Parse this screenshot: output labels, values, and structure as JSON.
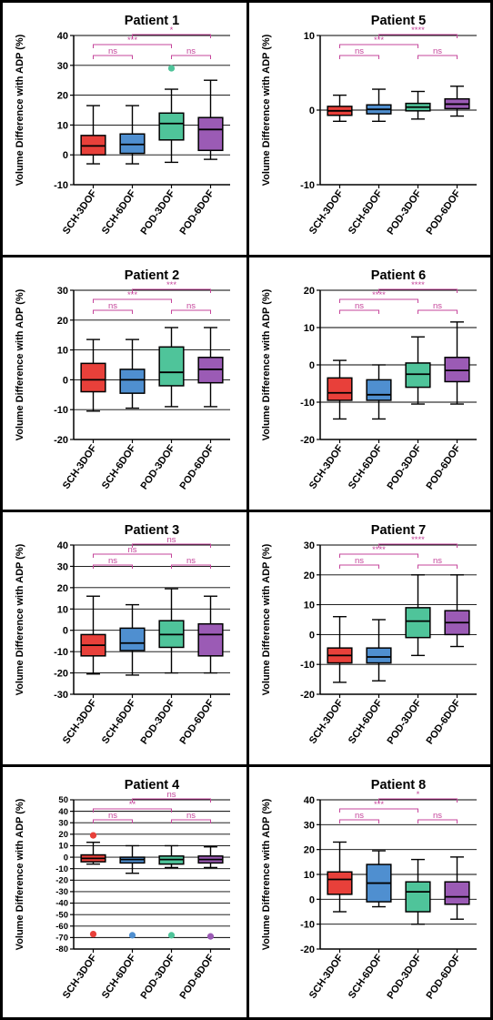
{
  "colors": {
    "SCH-3DOF": "#e8403a",
    "SCH-6DOF": "#4f8fd0",
    "POD-3DOF": "#4fc49a",
    "POD-6DOF": "#9b5bb5",
    "significance": "#c5459b"
  },
  "chart_data": [
    {
      "type": "box",
      "title": "Patient 1",
      "ylabel": "Volume Difference with ADP (%)",
      "ylim": [
        -10,
        40
      ],
      "yticks": [
        -10,
        0,
        10,
        20,
        30,
        40
      ],
      "categories": [
        "SCH-3DOF",
        "SCH-6DOF",
        "POD-3DOF",
        "POD-6DOF"
      ],
      "boxes": [
        {
          "min": -3,
          "q1": 0,
          "median": 3,
          "q3": 6.5,
          "max": 16.5
        },
        {
          "min": -3,
          "q1": 0.5,
          "median": 3.5,
          "q3": 7,
          "max": 16.5
        },
        {
          "min": -2.5,
          "q1": 5,
          "median": 10.5,
          "q3": 14,
          "max": 22
        },
        {
          "min": -1.5,
          "q1": 1.5,
          "median": 8.5,
          "q3": 12.5,
          "max": 25
        }
      ],
      "outliers": [
        {
          "category": "POD-3DOF",
          "value": 29
        }
      ],
      "comparisons": [
        {
          "from": "SCH-3DOF",
          "to": "SCH-6DOF",
          "label": "ns",
          "level": 0
        },
        {
          "from": "POD-3DOF",
          "to": "POD-6DOF",
          "label": "ns",
          "level": 1
        },
        {
          "from": "SCH-3DOF",
          "to": "POD-3DOF",
          "label": "***",
          "level": 2
        },
        {
          "from": "SCH-6DOF",
          "to": "POD-6DOF",
          "label": "*",
          "level": 3
        }
      ]
    },
    {
      "type": "box",
      "title": "Patient 5",
      "ylabel": "Volume Difference with ADP (%)",
      "ylim": [
        -10,
        10
      ],
      "yticks": [
        -10,
        0,
        10
      ],
      "categories": [
        "SCH-3DOF",
        "SCH-6DOF",
        "POD-3DOF",
        "POD-6DOF"
      ],
      "boxes": [
        {
          "min": -1.5,
          "q1": -0.7,
          "median": -0.1,
          "q3": 0.5,
          "max": 2
        },
        {
          "min": -1.5,
          "q1": -0.5,
          "median": 0.1,
          "q3": 0.7,
          "max": 2.8
        },
        {
          "min": -1.2,
          "q1": -0.1,
          "median": 0.4,
          "q3": 0.9,
          "max": 2.5
        },
        {
          "min": -0.8,
          "q1": 0.2,
          "median": 0.8,
          "q3": 1.5,
          "max": 3.2
        }
      ],
      "outliers": [],
      "comparisons": [
        {
          "from": "SCH-3DOF",
          "to": "SCH-6DOF",
          "label": "ns",
          "level": 0
        },
        {
          "from": "POD-3DOF",
          "to": "POD-6DOF",
          "label": "ns",
          "level": 1
        },
        {
          "from": "SCH-3DOF",
          "to": "POD-3DOF",
          "label": "***",
          "level": 2
        },
        {
          "from": "SCH-6DOF",
          "to": "POD-6DOF",
          "label": "****",
          "level": 3
        }
      ]
    },
    {
      "type": "box",
      "title": "Patient 2",
      "ylabel": "Volume Difference with ADP (%)",
      "ylim": [
        -20,
        30
      ],
      "yticks": [
        -20,
        -10,
        0,
        10,
        20,
        30
      ],
      "categories": [
        "SCH-3DOF",
        "SCH-6DOF",
        "POD-3DOF",
        "POD-6DOF"
      ],
      "boxes": [
        {
          "min": -10.5,
          "q1": -4,
          "median": 0,
          "q3": 5.5,
          "max": 13.5
        },
        {
          "min": -9.5,
          "q1": -4.5,
          "median": 0,
          "q3": 3.5,
          "max": 13.5
        },
        {
          "min": -9,
          "q1": -2,
          "median": 2.5,
          "q3": 11,
          "max": 17.5
        },
        {
          "min": -9,
          "q1": -1,
          "median": 3.5,
          "q3": 7.5,
          "max": 17.5
        }
      ],
      "outliers": [],
      "comparisons": [
        {
          "from": "SCH-3DOF",
          "to": "SCH-6DOF",
          "label": "ns",
          "level": 0
        },
        {
          "from": "POD-3DOF",
          "to": "POD-6DOF",
          "label": "ns",
          "level": 1
        },
        {
          "from": "SCH-3DOF",
          "to": "POD-3DOF",
          "label": "***",
          "level": 2
        },
        {
          "from": "SCH-6DOF",
          "to": "POD-6DOF",
          "label": "***",
          "level": 3
        }
      ]
    },
    {
      "type": "box",
      "title": "Patient 6",
      "ylabel": "Volume Difference with ADP (%)",
      "ylim": [
        -20,
        20
      ],
      "yticks": [
        -20,
        -10,
        0,
        10,
        20
      ],
      "categories": [
        "SCH-3DOF",
        "SCH-6DOF",
        "POD-3DOF",
        "POD-6DOF"
      ],
      "boxes": [
        {
          "min": -14.5,
          "q1": -9.5,
          "median": -7.5,
          "q3": -3.5,
          "max": 1.2
        },
        {
          "min": -14.5,
          "q1": -9.5,
          "median": -8,
          "q3": -4,
          "max": 0
        },
        {
          "min": -10.5,
          "q1": -6,
          "median": -2.5,
          "q3": 0.5,
          "max": 7.5
        },
        {
          "min": -10.5,
          "q1": -4.5,
          "median": -1.5,
          "q3": 2,
          "max": 11.5
        }
      ],
      "outliers": [],
      "comparisons": [
        {
          "from": "SCH-3DOF",
          "to": "SCH-6DOF",
          "label": "ns",
          "level": 0
        },
        {
          "from": "POD-3DOF",
          "to": "POD-6DOF",
          "label": "ns",
          "level": 1
        },
        {
          "from": "SCH-3DOF",
          "to": "POD-3DOF",
          "label": "****",
          "level": 2
        },
        {
          "from": "SCH-6DOF",
          "to": "POD-6DOF",
          "label": "****",
          "level": 3
        }
      ]
    },
    {
      "type": "box",
      "title": "Patient 3",
      "ylabel": "Volume Difference with ADP (%)",
      "ylim": [
        -30,
        40
      ],
      "yticks": [
        -30,
        -20,
        -10,
        0,
        10,
        20,
        30,
        40
      ],
      "categories": [
        "SCH-3DOF",
        "SCH-6DOF",
        "POD-3DOF",
        "POD-6DOF"
      ],
      "boxes": [
        {
          "min": -20.5,
          "q1": -12,
          "median": -7,
          "q3": -2,
          "max": 16
        },
        {
          "min": -21,
          "q1": -9.5,
          "median": -6,
          "q3": 1,
          "max": 12
        },
        {
          "min": -20,
          "q1": -8,
          "median": -2,
          "q3": 4.5,
          "max": 19.5
        },
        {
          "min": -20,
          "q1": -12,
          "median": -2,
          "q3": 3,
          "max": 16
        }
      ],
      "outliers": [],
      "comparisons": [
        {
          "from": "SCH-3DOF",
          "to": "SCH-6DOF",
          "label": "ns",
          "level": 0
        },
        {
          "from": "POD-3DOF",
          "to": "POD-6DOF",
          "label": "ns",
          "level": 1
        },
        {
          "from": "SCH-3DOF",
          "to": "POD-3DOF",
          "label": "ns",
          "level": 2
        },
        {
          "from": "SCH-6DOF",
          "to": "POD-6DOF",
          "label": "ns",
          "level": 3
        }
      ]
    },
    {
      "type": "box",
      "title": "Patient 7",
      "ylabel": "Volume Difference with ADP (%)",
      "ylim": [
        -20,
        30
      ],
      "yticks": [
        -20,
        -10,
        0,
        10,
        20,
        30
      ],
      "categories": [
        "SCH-3DOF",
        "SCH-6DOF",
        "POD-3DOF",
        "POD-6DOF"
      ],
      "boxes": [
        {
          "min": -16,
          "q1": -9.5,
          "median": -7,
          "q3": -4.5,
          "max": 6
        },
        {
          "min": -15.5,
          "q1": -9.5,
          "median": -7.5,
          "q3": -4.5,
          "max": 5
        },
        {
          "min": -7,
          "q1": -1,
          "median": 4.5,
          "q3": 9,
          "max": 20
        },
        {
          "min": -4,
          "q1": 0,
          "median": 4,
          "q3": 8,
          "max": 20
        }
      ],
      "outliers": [],
      "comparisons": [
        {
          "from": "SCH-3DOF",
          "to": "SCH-6DOF",
          "label": "ns",
          "level": 0
        },
        {
          "from": "POD-3DOF",
          "to": "POD-6DOF",
          "label": "ns",
          "level": 1
        },
        {
          "from": "SCH-3DOF",
          "to": "POD-3DOF",
          "label": "****",
          "level": 2
        },
        {
          "from": "SCH-6DOF",
          "to": "POD-6DOF",
          "label": "****",
          "level": 3
        }
      ]
    },
    {
      "type": "box",
      "title": "Patient 4",
      "ylabel": "Volume Difference with ADP (%)",
      "ylim": [
        -80,
        50
      ],
      "yticks": [
        -80,
        -70,
        -60,
        -50,
        -40,
        -30,
        -20,
        -10,
        0,
        10,
        20,
        30,
        40,
        50
      ],
      "categories": [
        "SCH-3DOF",
        "SCH-6DOF",
        "POD-3DOF",
        "POD-6DOF"
      ],
      "boxes": [
        {
          "min": -6,
          "q1": -4,
          "median": -1,
          "q3": 2,
          "max": 13
        },
        {
          "min": -14,
          "q1": -5,
          "median": -2,
          "q3": 0,
          "max": 10
        },
        {
          "min": -9,
          "q1": -6,
          "median": -2,
          "q3": 1,
          "max": 10
        },
        {
          "min": -9,
          "q1": -5,
          "median": -2,
          "q3": 1,
          "max": 9
        }
      ],
      "outliers": [
        {
          "category": "SCH-3DOF",
          "value": 19
        },
        {
          "category": "SCH-3DOF",
          "value": -67
        },
        {
          "category": "SCH-6DOF",
          "value": -68
        },
        {
          "category": "POD-3DOF",
          "value": -68
        },
        {
          "category": "POD-6DOF",
          "value": -69
        }
      ],
      "comparisons": [
        {
          "from": "SCH-3DOF",
          "to": "SCH-6DOF",
          "label": "ns",
          "level": 0
        },
        {
          "from": "POD-3DOF",
          "to": "POD-6DOF",
          "label": "ns",
          "level": 1
        },
        {
          "from": "SCH-3DOF",
          "to": "POD-3DOF",
          "label": "**",
          "level": 2
        },
        {
          "from": "SCH-6DOF",
          "to": "POD-6DOF",
          "label": "ns",
          "level": 3
        }
      ]
    },
    {
      "type": "box",
      "title": "Patient 8",
      "ylabel": "Volume Difference with ADP (%)",
      "ylim": [
        -20,
        40
      ],
      "yticks": [
        -20,
        -10,
        0,
        10,
        20,
        30,
        40
      ],
      "categories": [
        "SCH-3DOF",
        "SCH-6DOF",
        "POD-3DOF",
        "POD-6DOF"
      ],
      "boxes": [
        {
          "min": -5,
          "q1": 2,
          "median": 8,
          "q3": 11,
          "max": 23
        },
        {
          "min": -3,
          "q1": -1,
          "median": 6.5,
          "q3": 14,
          "max": 19.5
        },
        {
          "min": -10,
          "q1": -5,
          "median": 3,
          "q3": 7,
          "max": 16
        },
        {
          "min": -8,
          "q1": -2,
          "median": 1,
          "q3": 7,
          "max": 17
        }
      ],
      "outliers": [],
      "comparisons": [
        {
          "from": "SCH-3DOF",
          "to": "SCH-6DOF",
          "label": "ns",
          "level": 0
        },
        {
          "from": "POD-3DOF",
          "to": "POD-6DOF",
          "label": "ns",
          "level": 1
        },
        {
          "from": "SCH-3DOF",
          "to": "POD-3DOF",
          "label": "***",
          "level": 2
        },
        {
          "from": "SCH-6DOF",
          "to": "POD-6DOF",
          "label": "*",
          "level": 3
        }
      ]
    }
  ]
}
